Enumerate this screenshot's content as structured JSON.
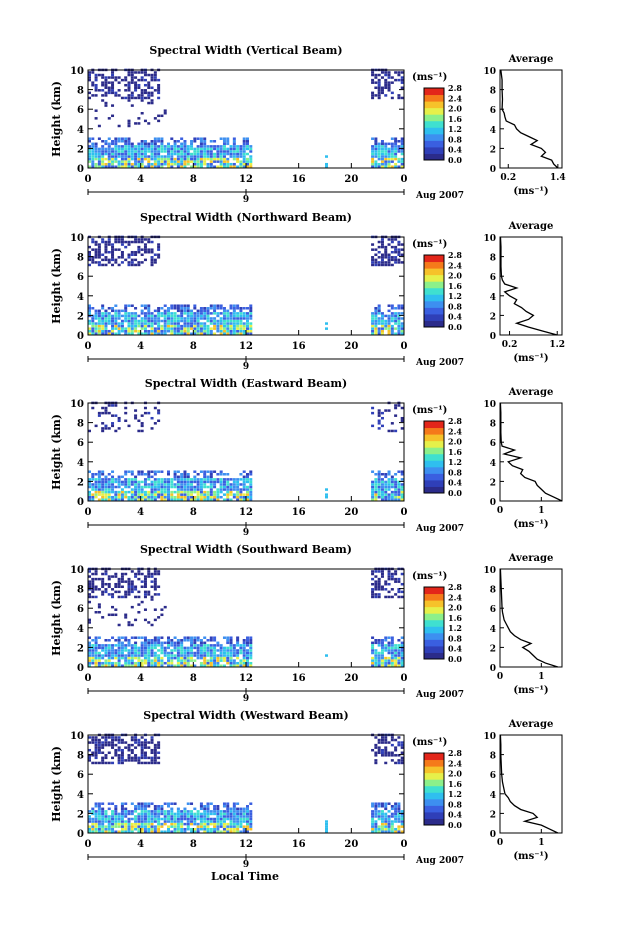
{
  "figure": {
    "xlabel": "Local Time",
    "date_label": "Aug 2007",
    "date_marker": "9",
    "colorbar_unit": "(ms⁻¹)",
    "colorbar_ticks": [
      "0.0",
      "0.4",
      "0.8",
      "1.2",
      "1.6",
      "2.0",
      "2.4",
      "2.8"
    ],
    "avg_title": "Average",
    "avg_xlabel": "(ms⁻¹)",
    "colormap": [
      "#2b2b8a",
      "#2f3fb8",
      "#3a5fe0",
      "#3d8ff0",
      "#2fbfef",
      "#3fe0d0",
      "#8cf08a",
      "#e6f04a",
      "#f6c22a",
      "#f57a1a",
      "#e3261a"
    ]
  },
  "chart_data": [
    {
      "type": "heatmap",
      "title": "Spectral Width (Vertical Beam)",
      "ylabel": "Height (km)",
      "xlabel": "Local Time",
      "xlim": [
        0,
        24
      ],
      "xticks": [
        "0",
        "4",
        "8",
        "12",
        "16",
        "20",
        "0"
      ],
      "ylim": [
        0,
        10
      ],
      "yticks": [
        "0",
        "2",
        "4",
        "6",
        "8",
        "10"
      ],
      "colorbar_range": [
        0.0,
        2.8
      ],
      "average_profile": {
        "title": "Average",
        "xticks": [
          "0.2",
          "1.4"
        ],
        "xlim": [
          0,
          1.5
        ],
        "height": [
          0,
          0.4,
          0.8,
          1.2,
          1.6,
          2.0,
          2.4,
          2.8,
          3.2,
          3.6,
          4.0,
          4.4,
          4.8,
          5.2,
          5.6,
          6.0,
          7.0,
          8.0,
          9.0,
          10.0
        ],
        "values": [
          1.4,
          1.3,
          1.25,
          1.0,
          1.1,
          1.0,
          0.75,
          0.9,
          0.7,
          0.5,
          0.4,
          0.35,
          0.15,
          0.12,
          0.1,
          0.05,
          0.06,
          0.05,
          0.05,
          0.02
        ]
      }
    },
    {
      "type": "heatmap",
      "title": "Spectral Width (Northward Beam)",
      "ylabel": "Height (km)",
      "xlabel": "Local Time",
      "xlim": [
        0,
        24
      ],
      "xticks": [
        "0",
        "4",
        "8",
        "12",
        "16",
        "20",
        "0"
      ],
      "ylim": [
        0,
        10
      ],
      "yticks": [
        "0",
        "2",
        "4",
        "6",
        "8",
        "10"
      ],
      "colorbar_range": [
        0.0,
        2.8
      ],
      "average_profile": {
        "title": "Average",
        "xticks": [
          "0.2",
          "1.2"
        ],
        "xlim": [
          0,
          1.3
        ],
        "height": [
          0,
          0.4,
          0.8,
          1.2,
          1.6,
          2.0,
          2.4,
          2.8,
          3.2,
          3.6,
          4.0,
          4.4,
          4.8,
          5.2,
          5.6,
          6.0,
          7.0,
          8.0,
          9.0,
          10.0
        ],
        "values": [
          1.2,
          0.9,
          0.6,
          0.35,
          0.6,
          0.7,
          0.55,
          0.45,
          0.3,
          0.35,
          0.2,
          0.1,
          0.35,
          0.1,
          0.05,
          0.03,
          0.02,
          0.02,
          0.02,
          0.01
        ]
      }
    },
    {
      "type": "heatmap",
      "title": "Spectral Width (Eastward Beam)",
      "ylabel": "Height (km)",
      "xlabel": "Local Time",
      "xlim": [
        0,
        24
      ],
      "xticks": [
        "0",
        "4",
        "8",
        "12",
        "16",
        "20",
        "0"
      ],
      "ylim": [
        0,
        10
      ],
      "yticks": [
        "0",
        "2",
        "4",
        "6",
        "8",
        "10"
      ],
      "colorbar_range": [
        0.0,
        2.8
      ],
      "average_profile": {
        "title": "Average",
        "xticks": [
          "0",
          "1"
        ],
        "xlim": [
          0,
          1.5
        ],
        "height": [
          0,
          0.4,
          0.8,
          1.2,
          1.6,
          2.0,
          2.4,
          2.8,
          3.2,
          3.6,
          4.0,
          4.4,
          4.8,
          5.2,
          5.6,
          6.0,
          7.0,
          8.0,
          9.0,
          10.0
        ],
        "values": [
          1.5,
          1.3,
          1.1,
          1.0,
          0.9,
          0.85,
          0.6,
          0.5,
          0.55,
          0.3,
          0.2,
          0.5,
          0.1,
          0.35,
          0.05,
          0.03,
          0.02,
          0.02,
          0.02,
          0.01
        ]
      }
    },
    {
      "type": "heatmap",
      "title": "Spectral Width (Southward Beam)",
      "ylabel": "Height (km)",
      "xlabel": "Local Time",
      "xlim": [
        0,
        24
      ],
      "xticks": [
        "0",
        "4",
        "8",
        "12",
        "16",
        "20",
        "0"
      ],
      "ylim": [
        0,
        10
      ],
      "yticks": [
        "0",
        "2",
        "4",
        "6",
        "8",
        "10"
      ],
      "colorbar_range": [
        0.0,
        2.8
      ],
      "average_profile": {
        "title": "Average",
        "xticks": [
          "0",
          "1"
        ],
        "xlim": [
          0,
          1.5
        ],
        "height": [
          0,
          0.4,
          0.8,
          1.2,
          1.6,
          2.0,
          2.4,
          2.8,
          3.2,
          3.6,
          4.0,
          4.4,
          4.8,
          5.2,
          5.6,
          6.0,
          7.0,
          8.0,
          9.0,
          10.0
        ],
        "values": [
          1.4,
          1.1,
          0.9,
          0.8,
          0.7,
          0.55,
          0.75,
          0.5,
          0.35,
          0.25,
          0.2,
          0.15,
          0.1,
          0.08,
          0.06,
          0.05,
          0.04,
          0.03,
          0.02,
          0.01
        ]
      }
    },
    {
      "type": "heatmap",
      "title": "Spectral Width (Westward Beam)",
      "ylabel": "Height (km)",
      "xlabel": "Local Time",
      "xlim": [
        0,
        24
      ],
      "xticks": [
        "0",
        "4",
        "8",
        "12",
        "16",
        "20",
        "0"
      ],
      "ylim": [
        0,
        10
      ],
      "yticks": [
        "0",
        "2",
        "4",
        "6",
        "8",
        "10"
      ],
      "colorbar_range": [
        0.0,
        2.8
      ],
      "average_profile": {
        "title": "Average",
        "xticks": [
          "0",
          "1"
        ],
        "xlim": [
          0,
          1.5
        ],
        "height": [
          0,
          0.4,
          0.8,
          1.2,
          1.6,
          2.0,
          2.4,
          2.8,
          3.2,
          3.6,
          4.0,
          4.4,
          4.8,
          5.2,
          5.6,
          6.0,
          7.0,
          8.0,
          9.0,
          10.0
        ],
        "values": [
          1.4,
          1.2,
          1.0,
          0.6,
          0.9,
          0.8,
          0.5,
          0.35,
          0.25,
          0.2,
          0.12,
          0.1,
          0.08,
          0.06,
          0.05,
          0.04,
          0.03,
          0.02,
          0.02,
          0.01
        ]
      }
    }
  ]
}
